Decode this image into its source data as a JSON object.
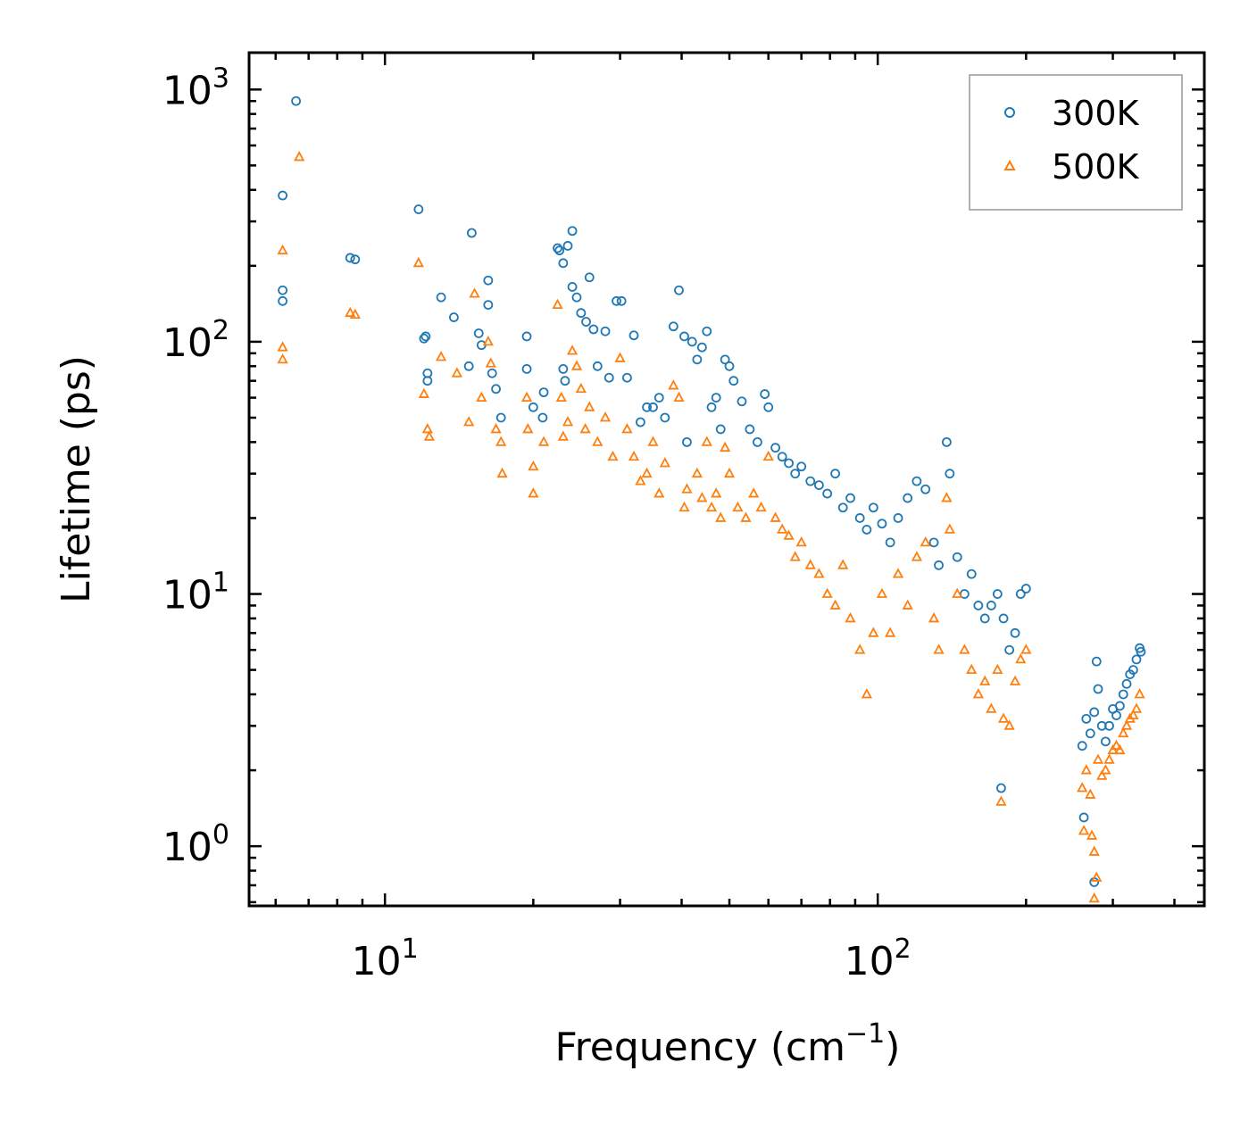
{
  "chart_data": {
    "type": "scatter",
    "title": "",
    "xlabel": "Frequency (cm",
    "xlabel_sup": "−1",
    "xlabel_close": ")",
    "ylabel": "Lifetime (ps)",
    "xscale": "log",
    "yscale": "log",
    "xlim": [
      5.3,
      460
    ],
    "ylim": [
      0.58,
      1400
    ],
    "x_ticks": [
      {
        "value": 10,
        "base": "10",
        "exp": "1"
      },
      {
        "value": 100,
        "base": "10",
        "exp": "2"
      }
    ],
    "y_ticks": [
      {
        "value": 1,
        "base": "10",
        "exp": "0"
      },
      {
        "value": 10,
        "base": "10",
        "exp": "1"
      },
      {
        "value": 100,
        "base": "10",
        "exp": "2"
      },
      {
        "value": 1000,
        "base": "10",
        "exp": "3"
      }
    ],
    "legend_position": "top-right",
    "series": [
      {
        "name": "300K",
        "marker": "circle",
        "color": "#1f77b4",
        "points": [
          [
            6.2,
            380
          ],
          [
            6.6,
            900
          ],
          [
            6.2,
            160
          ],
          [
            6.2,
            145
          ],
          [
            8.5,
            215
          ],
          [
            8.7,
            212
          ],
          [
            11.7,
            335
          ],
          [
            12.1,
            105
          ],
          [
            12.0,
            103
          ],
          [
            12.2,
            75
          ],
          [
            12.2,
            70
          ],
          [
            13.0,
            150
          ],
          [
            13.8,
            125
          ],
          [
            14.8,
            80
          ],
          [
            15.0,
            270
          ],
          [
            15.5,
            108
          ],
          [
            15.7,
            97
          ],
          [
            16.2,
            175
          ],
          [
            16.2,
            140
          ],
          [
            16.5,
            75
          ],
          [
            16.8,
            65
          ],
          [
            17.2,
            50
          ],
          [
            19.4,
            105
          ],
          [
            19.4,
            78
          ],
          [
            20.0,
            55
          ],
          [
            20.9,
            50
          ],
          [
            21.0,
            63
          ],
          [
            22.4,
            235
          ],
          [
            22.6,
            230
          ],
          [
            23.0,
            205
          ],
          [
            23.5,
            240
          ],
          [
            24.0,
            275
          ],
          [
            23.0,
            78
          ],
          [
            23.2,
            70
          ],
          [
            24.0,
            165
          ],
          [
            24.5,
            150
          ],
          [
            25.0,
            130
          ],
          [
            25.6,
            120
          ],
          [
            26.0,
            180
          ],
          [
            26.5,
            112
          ],
          [
            27.0,
            80
          ],
          [
            28.0,
            110
          ],
          [
            28.5,
            72
          ],
          [
            29.5,
            145
          ],
          [
            30.2,
            145
          ],
          [
            31.0,
            72
          ],
          [
            32.0,
            106
          ],
          [
            33.0,
            48
          ],
          [
            34.0,
            55
          ],
          [
            35.0,
            55
          ],
          [
            36.0,
            60
          ],
          [
            37.0,
            50
          ],
          [
            38.5,
            115
          ],
          [
            39.5,
            160
          ],
          [
            40.5,
            105
          ],
          [
            41.0,
            40
          ],
          [
            42.0,
            100
          ],
          [
            43.0,
            85
          ],
          [
            44.0,
            95
          ],
          [
            45.0,
            110
          ],
          [
            46.0,
            55
          ],
          [
            47.0,
            60
          ],
          [
            48.0,
            45
          ],
          [
            49.0,
            85
          ],
          [
            50.0,
            80
          ],
          [
            51.0,
            70
          ],
          [
            53.0,
            58
          ],
          [
            55.0,
            45
          ],
          [
            57.0,
            40
          ],
          [
            59.0,
            62
          ],
          [
            60.0,
            55
          ],
          [
            62.0,
            38
          ],
          [
            64.0,
            35
          ],
          [
            66.0,
            33
          ],
          [
            68.0,
            30
          ],
          [
            70.0,
            32
          ],
          [
            73.0,
            28
          ],
          [
            76.0,
            27
          ],
          [
            79.0,
            25
          ],
          [
            82.0,
            30
          ],
          [
            85.0,
            22
          ],
          [
            88.0,
            24
          ],
          [
            92.0,
            20
          ],
          [
            95.0,
            18
          ],
          [
            98.0,
            22
          ],
          [
            102.0,
            19
          ],
          [
            106.0,
            16
          ],
          [
            110.0,
            20
          ],
          [
            115.0,
            24
          ],
          [
            120.0,
            28
          ],
          [
            125.0,
            26
          ],
          [
            130.0,
            16
          ],
          [
            133.0,
            13
          ],
          [
            138.0,
            40
          ],
          [
            140.0,
            30
          ],
          [
            145.0,
            14
          ],
          [
            150.0,
            10
          ],
          [
            155.0,
            12
          ],
          [
            160.0,
            9
          ],
          [
            165.0,
            8
          ],
          [
            170.0,
            9
          ],
          [
            175.0,
            10
          ],
          [
            180.0,
            8
          ],
          [
            185.0,
            6
          ],
          [
            190.0,
            7
          ],
          [
            195.0,
            10
          ],
          [
            200.0,
            10.5
          ],
          [
            178.0,
            1.7
          ],
          [
            260.0,
            2.5
          ],
          [
            262.0,
            1.3
          ],
          [
            265.0,
            3.2
          ],
          [
            270.0,
            2.8
          ],
          [
            275.0,
            3.4
          ],
          [
            278.0,
            5.4
          ],
          [
            280.0,
            4.2
          ],
          [
            285.0,
            3.0
          ],
          [
            290.0,
            2.6
          ],
          [
            295.0,
            3.0
          ],
          [
            300.0,
            3.5
          ],
          [
            305.0,
            3.3
          ],
          [
            310.0,
            3.6
          ],
          [
            315.0,
            4.0
          ],
          [
            320.0,
            4.4
          ],
          [
            325.0,
            4.8
          ],
          [
            330.0,
            5.0
          ],
          [
            335.0,
            5.5
          ],
          [
            340.0,
            6.1
          ],
          [
            342.0,
            5.9
          ],
          [
            275.0,
            0.72
          ]
        ]
      },
      {
        "name": "500K",
        "marker": "triangle",
        "color": "#ff7f0e",
        "points": [
          [
            6.7,
            540
          ],
          [
            6.2,
            230
          ],
          [
            6.2,
            95
          ],
          [
            6.2,
            85
          ],
          [
            8.5,
            130
          ],
          [
            8.7,
            128
          ],
          [
            11.7,
            205
          ],
          [
            12.0,
            62
          ],
          [
            12.2,
            45
          ],
          [
            12.3,
            42
          ],
          [
            13.0,
            87
          ],
          [
            14.0,
            75
          ],
          [
            14.8,
            48
          ],
          [
            15.2,
            155
          ],
          [
            15.7,
            60
          ],
          [
            16.2,
            100
          ],
          [
            16.4,
            82
          ],
          [
            16.8,
            45
          ],
          [
            17.2,
            40
          ],
          [
            17.3,
            30
          ],
          [
            19.4,
            60
          ],
          [
            19.5,
            45
          ],
          [
            20.0,
            32
          ],
          [
            20.0,
            25
          ],
          [
            21.0,
            40
          ],
          [
            22.4,
            140
          ],
          [
            22.8,
            60
          ],
          [
            23.0,
            42
          ],
          [
            23.5,
            48
          ],
          [
            24.0,
            92
          ],
          [
            24.5,
            80
          ],
          [
            25.0,
            65
          ],
          [
            25.5,
            45
          ],
          [
            26.0,
            55
          ],
          [
            27.0,
            40
          ],
          [
            28.0,
            50
          ],
          [
            29.0,
            35
          ],
          [
            30.0,
            86
          ],
          [
            31.0,
            45
          ],
          [
            32.0,
            35
          ],
          [
            33.0,
            28
          ],
          [
            34.0,
            30
          ],
          [
            35.0,
            40
          ],
          [
            36.0,
            25
          ],
          [
            37.0,
            33
          ],
          [
            38.5,
            67
          ],
          [
            39.5,
            60
          ],
          [
            40.5,
            22
          ],
          [
            41.0,
            26
          ],
          [
            43.0,
            30
          ],
          [
            44.0,
            24
          ],
          [
            45.0,
            40
          ],
          [
            46.0,
            22
          ],
          [
            47.0,
            25
          ],
          [
            48.0,
            20
          ],
          [
            49.0,
            38
          ],
          [
            50.0,
            30
          ],
          [
            52.0,
            22
          ],
          [
            54.0,
            20
          ],
          [
            56.0,
            25
          ],
          [
            58.0,
            22
          ],
          [
            60.0,
            35
          ],
          [
            62.0,
            20
          ],
          [
            64.0,
            18
          ],
          [
            66.0,
            17
          ],
          [
            68.0,
            14
          ],
          [
            70.0,
            16
          ],
          [
            73.0,
            13
          ],
          [
            76.0,
            12
          ],
          [
            79.0,
            10
          ],
          [
            82.0,
            9
          ],
          [
            85.0,
            13
          ],
          [
            88.0,
            8
          ],
          [
            92.0,
            6
          ],
          [
            95.0,
            4
          ],
          [
            98.0,
            7
          ],
          [
            102.0,
            10
          ],
          [
            106.0,
            7
          ],
          [
            110.0,
            12
          ],
          [
            115.0,
            9
          ],
          [
            120.0,
            14
          ],
          [
            125.0,
            16
          ],
          [
            130.0,
            8
          ],
          [
            133.0,
            6
          ],
          [
            138.0,
            24
          ],
          [
            140.0,
            18
          ],
          [
            145.0,
            10
          ],
          [
            150.0,
            6
          ],
          [
            155.0,
            5
          ],
          [
            160.0,
            4
          ],
          [
            165.0,
            4.5
          ],
          [
            170.0,
            3.5
          ],
          [
            175.0,
            5
          ],
          [
            180.0,
            3.2
          ],
          [
            185.0,
            3
          ],
          [
            190.0,
            4.5
          ],
          [
            195.0,
            5.5
          ],
          [
            200.0,
            6
          ],
          [
            178.0,
            1.5
          ],
          [
            260.0,
            1.7
          ],
          [
            262.0,
            1.15
          ],
          [
            265.0,
            2.0
          ],
          [
            270.0,
            1.6
          ],
          [
            272.0,
            1.1
          ],
          [
            275.0,
            0.95
          ],
          [
            278.0,
            0.75
          ],
          [
            280.0,
            2.2
          ],
          [
            285.0,
            1.9
          ],
          [
            290.0,
            2.0
          ],
          [
            295.0,
            2.2
          ],
          [
            300.0,
            2.4
          ],
          [
            305.0,
            2.5
          ],
          [
            310.0,
            2.4
          ],
          [
            315.0,
            2.8
          ],
          [
            320.0,
            3.0
          ],
          [
            325.0,
            3.2
          ],
          [
            330.0,
            3.3
          ],
          [
            335.0,
            3.5
          ],
          [
            340.0,
            4.0
          ],
          [
            275.0,
            0.62
          ]
        ]
      }
    ]
  }
}
